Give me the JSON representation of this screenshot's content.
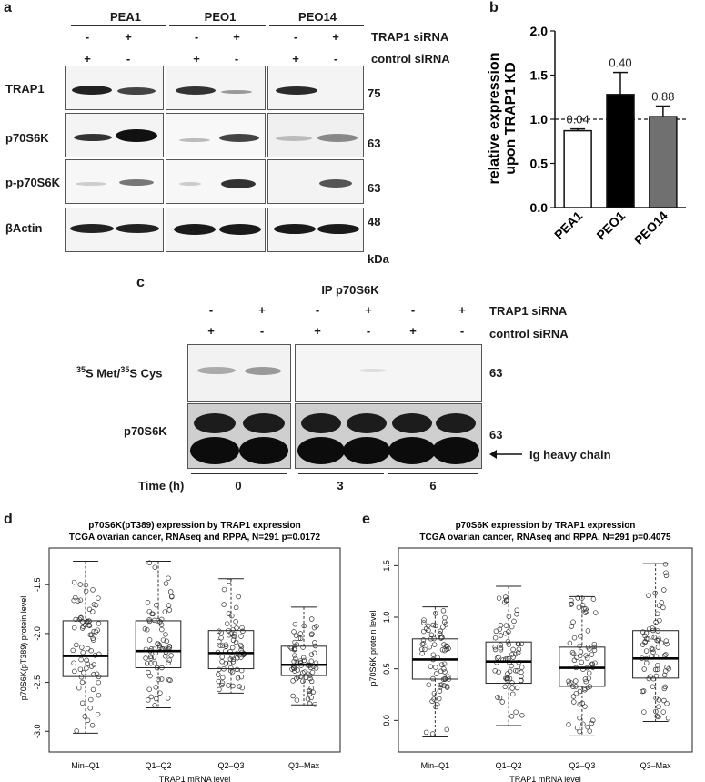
{
  "panels": {
    "a": "a",
    "b": "b",
    "c": "c",
    "d": "d",
    "e": "e"
  },
  "panel_a": {
    "cell_lines": [
      "PEA1",
      "PEO1",
      "PEO14"
    ],
    "trap1_row": {
      "label": "TRAP1 siRNA",
      "signs": [
        "-",
        "+",
        "-",
        "+",
        "-",
        "+"
      ]
    },
    "control_row": {
      "label": "control siRNA",
      "signs": [
        "+",
        "-",
        "+",
        "-",
        "+",
        "-"
      ]
    },
    "blot_rows": [
      {
        "label": "TRAP1",
        "mw": "75"
      },
      {
        "label": "p70S6K",
        "mw": "63"
      },
      {
        "label": "p-p70S6K",
        "mw": "63"
      },
      {
        "label": "βActin",
        "mw": "48"
      }
    ],
    "unit": "kDa"
  },
  "panel_c": {
    "title": "IP p70S6K",
    "trap1_row": {
      "label": "TRAP1 siRNA",
      "signs": [
        "-",
        "+",
        "-",
        "+",
        "-",
        "+"
      ]
    },
    "control_row": {
      "label": "control siRNA",
      "signs": [
        "+",
        "-",
        "+",
        "-",
        "+",
        "-"
      ]
    },
    "row1_label_sup1": "35",
    "row1_label_mid": "S Met/",
    "row1_label_sup2": "35",
    "row1_label_end": "S Cys",
    "row1_mw": "63",
    "row2_label": "p70S6K",
    "row2_mw": "63",
    "ig_label": "Ig heavy chain",
    "time_label": "Time (h)",
    "times": [
      "0",
      "3",
      "6"
    ]
  },
  "chart_data": [
    {
      "type": "bar",
      "panel": "b",
      "categories": [
        "PEA1",
        "PEO1",
        "PEO14"
      ],
      "values": [
        0.87,
        1.28,
        1.03
      ],
      "errors": [
        0.02,
        0.25,
        0.12
      ],
      "bar_colors": [
        "#ffffff",
        "#000000",
        "#707070"
      ],
      "value_labels": [
        "0.04",
        "0.40",
        "0.88"
      ],
      "ylabel": "relative expression upon TRAP1 KD",
      "ylim": [
        0,
        2.0
      ],
      "yticks": [
        "0.0",
        "0.5",
        "1.0",
        "1.5",
        "2.0"
      ],
      "reference_line": 1.0
    },
    {
      "type": "box",
      "panel": "d",
      "title": "p70S6K(pT389) expression by TRAP1 expression",
      "subtitle": "TCGA ovarian cancer, RNAseq and RPPA, N=291 p=0.0172",
      "xlabel": "TRAP1 mRNA level",
      "ylabel": "p70S6K(pT389) protein level",
      "categories": [
        "Min–Q1",
        "Q1–Q2",
        "Q2–Q3",
        "Q3–Max"
      ],
      "yticks": [
        "-3.0",
        "-2.5",
        "-2.0",
        "-1.5"
      ],
      "ylim": [
        -3.1,
        -1.2
      ],
      "boxes": [
        {
          "min": -3.02,
          "q1": -2.44,
          "median": -2.23,
          "q3": -1.87,
          "max": -1.26
        },
        {
          "min": -2.76,
          "q1": -2.35,
          "median": -2.18,
          "q3": -1.87,
          "max": -1.26
        },
        {
          "min": -2.61,
          "q1": -2.36,
          "median": -2.2,
          "q3": -1.97,
          "max": -1.44
        },
        {
          "min": -2.73,
          "q1": -2.43,
          "median": -2.32,
          "q3": -2.13,
          "max": -1.73
        }
      ]
    },
    {
      "type": "box",
      "panel": "e",
      "title": "p70S6K expression by TRAP1 expression",
      "subtitle": "TCGA ovarian cancer, RNAseq and RPPA, N=291 p=0.4075",
      "xlabel": "TRAP1 mRNA level",
      "ylabel": "p70S6K protein level",
      "categories": [
        "Min–Q1",
        "Q1–Q2",
        "Q2–Q3",
        "Q3–Max"
      ],
      "yticks": [
        "0.0",
        "0.5",
        "1.0",
        "1.5"
      ],
      "ylim": [
        -0.2,
        1.6
      ],
      "boxes": [
        {
          "min": -0.16,
          "q1": 0.4,
          "median": 0.59,
          "q3": 0.79,
          "max": 1.1
        },
        {
          "min": -0.05,
          "q1": 0.36,
          "median": 0.57,
          "q3": 0.76,
          "max": 1.3
        },
        {
          "min": -0.15,
          "q1": 0.33,
          "median": 0.51,
          "q3": 0.71,
          "max": 1.2
        },
        {
          "min": -0.01,
          "q1": 0.41,
          "median": 0.6,
          "q3": 0.87,
          "max": 1.52
        }
      ]
    }
  ]
}
